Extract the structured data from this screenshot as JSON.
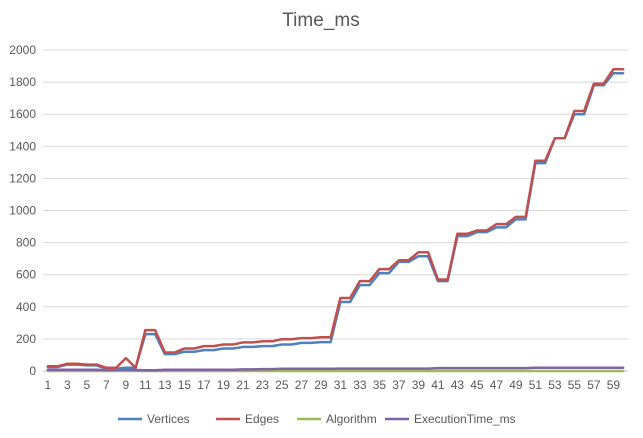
{
  "chart_data": {
    "type": "line",
    "title": "Time_ms",
    "xlabel": "",
    "ylabel": "",
    "ylim": [
      0,
      2000
    ],
    "yticks": [
      0,
      200,
      400,
      600,
      800,
      1000,
      1200,
      1400,
      1600,
      1800,
      2000
    ],
    "x": [
      1,
      2,
      3,
      4,
      5,
      6,
      7,
      8,
      9,
      10,
      11,
      12,
      13,
      14,
      15,
      16,
      17,
      18,
      19,
      20,
      21,
      22,
      23,
      24,
      25,
      26,
      27,
      28,
      29,
      30,
      31,
      32,
      33,
      34,
      35,
      36,
      37,
      38,
      39,
      40,
      41,
      42,
      43,
      44,
      45,
      46,
      47,
      48,
      49,
      50,
      51,
      52,
      53,
      54,
      55,
      56,
      57,
      58,
      59,
      60
    ],
    "xtick_labels": [
      "1",
      "3",
      "5",
      "7",
      "9",
      "11",
      "13",
      "15",
      "17",
      "19",
      "21",
      "23",
      "25",
      "27",
      "29",
      "31",
      "33",
      "35",
      "37",
      "39",
      "41",
      "43",
      "45",
      "47",
      "49",
      "51",
      "53",
      "55",
      "57",
      "59"
    ],
    "grid": true,
    "legend_position": "bottom",
    "series": [
      {
        "name": "Vertices",
        "color": "#4f81bd",
        "values": [
          25,
          25,
          40,
          40,
          35,
          35,
          15,
          15,
          20,
          20,
          230,
          230,
          105,
          105,
          120,
          120,
          130,
          130,
          140,
          140,
          150,
          150,
          155,
          155,
          165,
          165,
          175,
          175,
          180,
          180,
          430,
          430,
          535,
          535,
          610,
          610,
          680,
          680,
          715,
          715,
          560,
          560,
          840,
          840,
          865,
          865,
          895,
          895,
          945,
          945,
          1295,
          1295,
          1450,
          1450,
          1600,
          1600,
          1780,
          1780,
          1855,
          1855
        ]
      },
      {
        "name": "Edges",
        "color": "#c0504d",
        "values": [
          30,
          30,
          45,
          45,
          40,
          40,
          20,
          20,
          80,
          20,
          255,
          255,
          115,
          115,
          140,
          140,
          155,
          155,
          165,
          165,
          178,
          178,
          185,
          185,
          198,
          198,
          205,
          205,
          210,
          210,
          455,
          455,
          560,
          560,
          635,
          635,
          690,
          690,
          740,
          740,
          570,
          570,
          855,
          855,
          875,
          875,
          915,
          915,
          960,
          960,
          1310,
          1310,
          1450,
          1450,
          1620,
          1620,
          1790,
          1790,
          1880,
          1880
        ]
      },
      {
        "name": "Algorithm",
        "color": "#9bbb59",
        "values": [
          0,
          0,
          0,
          0,
          0,
          0,
          0,
          0,
          0,
          0,
          0,
          0,
          0,
          0,
          0,
          0,
          0,
          0,
          0,
          0,
          0,
          0,
          0,
          0,
          0,
          0,
          0,
          0,
          0,
          0,
          0,
          0,
          0,
          0,
          0,
          0,
          0,
          0,
          0,
          0,
          0,
          0,
          0,
          0,
          0,
          0,
          0,
          0,
          0,
          0,
          0,
          0,
          0,
          0,
          0,
          0,
          0,
          0,
          0,
          0
        ]
      },
      {
        "name": "ExecutionTime_ms",
        "color": "#8064a2",
        "values": [
          8,
          8,
          8,
          8,
          8,
          8,
          6,
          6,
          8,
          6,
          5,
          5,
          8,
          8,
          8,
          8,
          8,
          8,
          8,
          8,
          10,
          10,
          12,
          12,
          14,
          14,
          14,
          14,
          14,
          14,
          15,
          15,
          15,
          15,
          15,
          15,
          15,
          15,
          15,
          15,
          18,
          18,
          18,
          18,
          18,
          18,
          18,
          18,
          18,
          18,
          20,
          20,
          20,
          20,
          20,
          20,
          20,
          20,
          20,
          20
        ]
      }
    ]
  }
}
